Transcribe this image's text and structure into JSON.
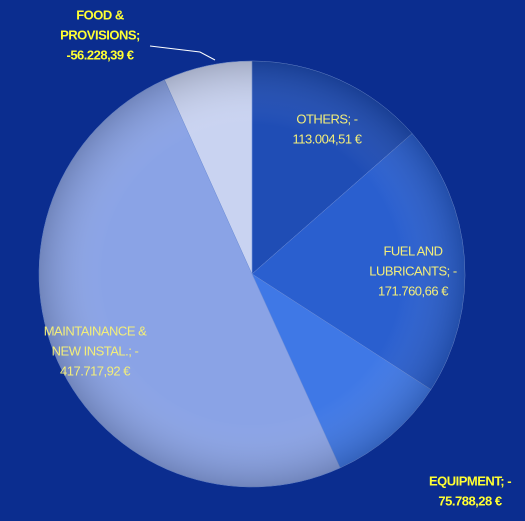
{
  "chart_data": {
    "type": "pie",
    "labels": [
      [
        "OTHERS; -",
        "113.004,51 €"
      ],
      [
        "FUEL AND",
        "LUBRICANTS; -",
        "171.760,66 €"
      ],
      [
        "EQUIPMENT; -",
        "75.788,28 €"
      ],
      [
        "MAINTAINANCE &",
        "NEW INSTAL.; -",
        "417.717,92 €"
      ],
      [
        "FOOD &",
        "PROVISIONS;",
        "-56.228,39 €"
      ]
    ],
    "values": [
      -113004.51,
      -171760.66,
      -75788.28,
      -417717.92,
      -56228.39
    ],
    "colors": [
      "#1f4db5",
      "#2a5fcf",
      "#3f78e6",
      "#8aa3e6",
      "#c9d3f1"
    ]
  }
}
